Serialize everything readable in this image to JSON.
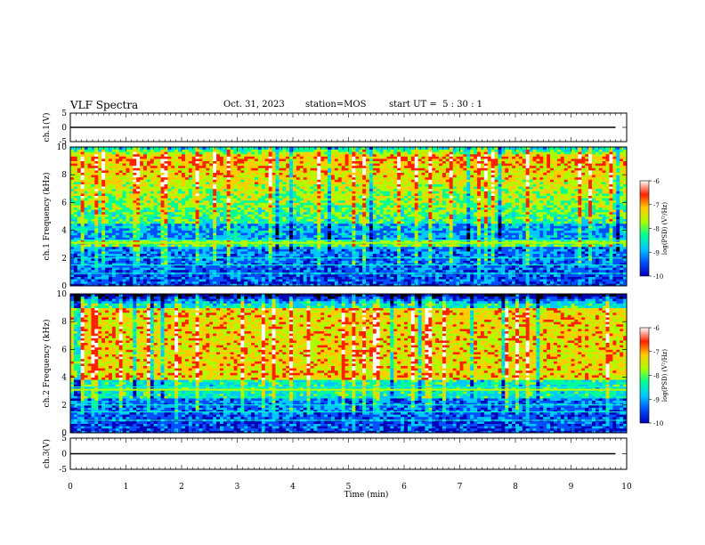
{
  "header": {
    "title": "VLF Spectra",
    "date": "Oct. 31, 2023",
    "station": "station=MOS",
    "start": "start UT =  5 : 30 : 1"
  },
  "colors": {
    "colormap": [
      "#000000",
      "#0000b4",
      "#0050ff",
      "#00c8ff",
      "#00ff96",
      "#aaff00",
      "#ffcc00",
      "#ff2200",
      "#ffffff"
    ]
  },
  "chart_data": [
    {
      "name": "ch1-waveform",
      "type": "line",
      "ylabel": "ch.1(V)",
      "ylim": [
        -5,
        5
      ],
      "yticks": [
        "5",
        "0",
        "-5"
      ],
      "xlim": [
        0,
        10
      ],
      "series": [
        {
          "x": [
            0,
            9.8
          ],
          "y": [
            0,
            0
          ]
        }
      ]
    },
    {
      "name": "ch1-spectrogram",
      "type": "heatmap",
      "ylabel": "ch.1 Frequency (kHz)",
      "ylim": [
        0,
        10
      ],
      "yticks": [
        "0",
        "2",
        "4",
        "6",
        "8",
        "10"
      ],
      "xlim": [
        0,
        10
      ],
      "colorbar": {
        "label": "log(PSD) (V²/Hz)",
        "range": [
          -10,
          -6
        ],
        "ticks": [
          "-6",
          "-7",
          "-8",
          "-9",
          "-10"
        ]
      }
    },
    {
      "name": "ch2-spectrogram",
      "type": "heatmap",
      "ylabel": "ch.2 Frequency (kHz)",
      "ylim": [
        0,
        10
      ],
      "yticks": [
        "0",
        "2",
        "4",
        "6",
        "8",
        "10"
      ],
      "xlim": [
        0,
        10
      ],
      "colorbar": {
        "label": "log(PSD) (V²/Hz)",
        "range": [
          -10,
          -6
        ],
        "ticks": [
          "-6",
          "-7",
          "-8",
          "-9",
          "-10"
        ]
      }
    },
    {
      "name": "ch3-waveform",
      "type": "line",
      "ylabel": "ch.3(V)",
      "ylim": [
        -5,
        5
      ],
      "yticks": [
        "5",
        "0",
        "-5"
      ],
      "xlim": [
        0,
        10
      ],
      "xlabel": "Time (min)",
      "xticks": [
        "0",
        "1",
        "2",
        "3",
        "4",
        "5",
        "6",
        "7",
        "8",
        "9",
        "10"
      ],
      "series": [
        {
          "x": [
            0,
            9.8
          ],
          "y": [
            0,
            0
          ]
        }
      ]
    }
  ]
}
